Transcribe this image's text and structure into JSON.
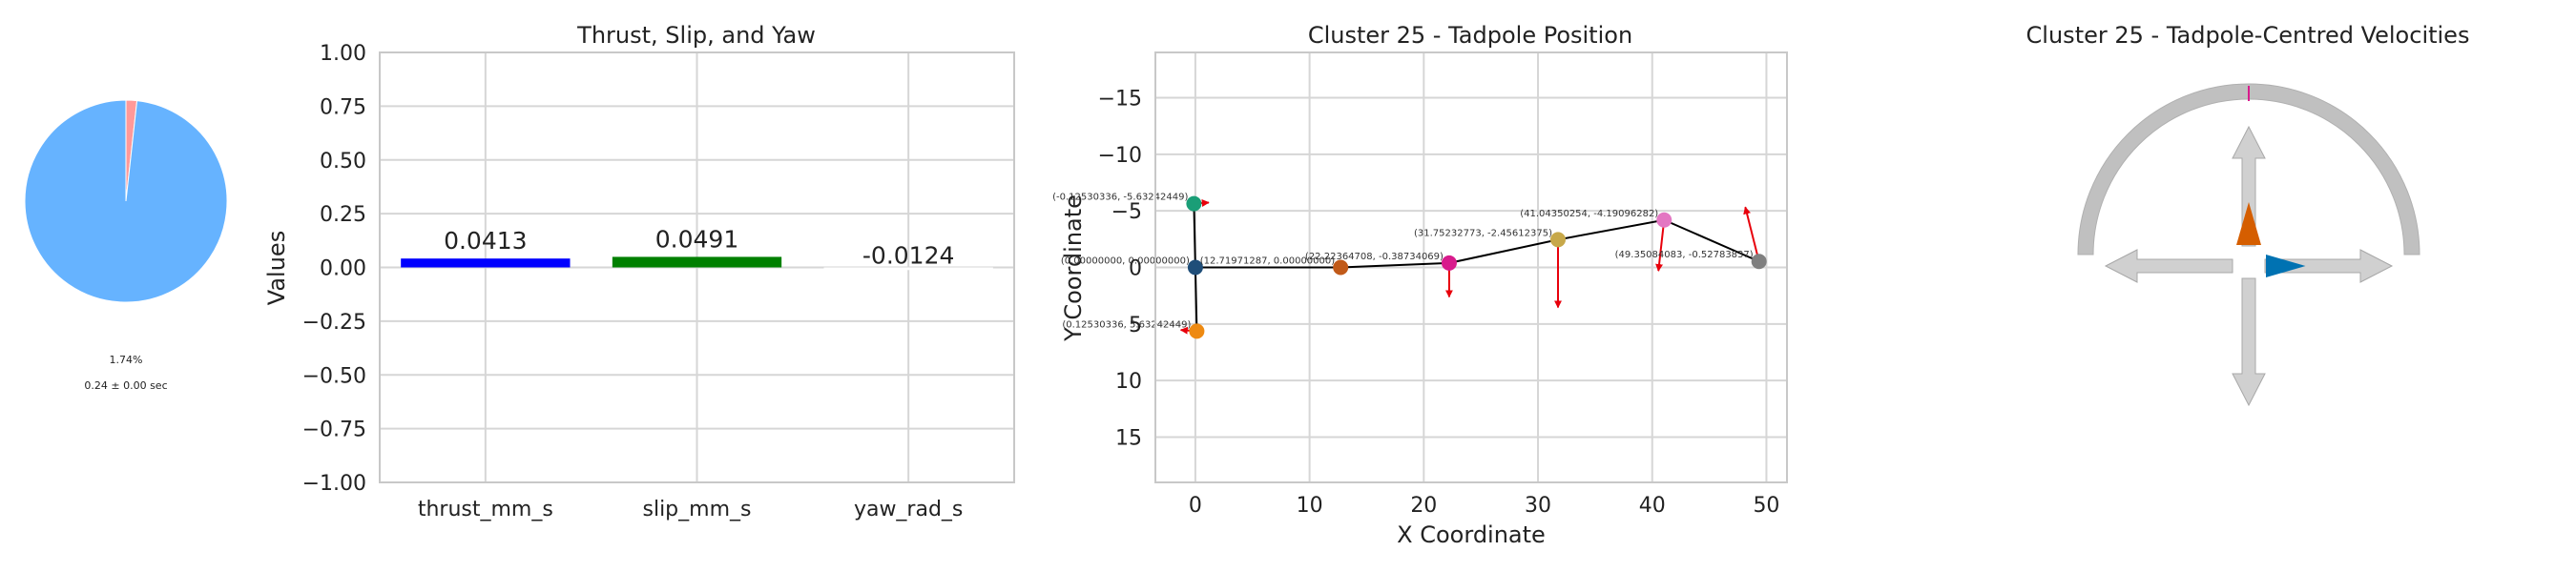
{
  "chart_data": [
    {
      "type": "pie",
      "slices": [
        {
          "value": 98.26,
          "color": "#66b3ff"
        },
        {
          "value": 1.74,
          "color": "#ff9999"
        }
      ],
      "percent_label": "1.74%",
      "duration_label": "0.24 ± 0.00 sec"
    },
    {
      "type": "bar",
      "title": "Thrust, Slip, and Yaw",
      "ylabel": "Values",
      "xlabel": "",
      "ylim": [
        -1.0,
        1.0
      ],
      "yticks": [
        -1.0,
        -0.75,
        -0.5,
        -0.25,
        0.0,
        0.25,
        0.5,
        0.75,
        1.0
      ],
      "ytick_labels": [
        "−1.00",
        "−0.75",
        "−0.50",
        "−0.25",
        "0.00",
        "0.25",
        "0.50",
        "0.75",
        "1.00"
      ],
      "categories": [
        "thrust_mm_s",
        "slip_mm_s",
        "yaw_rad_s"
      ],
      "values": [
        0.0413,
        0.0491,
        -0.0124
      ],
      "value_labels": [
        "0.0413",
        "0.0491",
        "-0.0124"
      ],
      "colors": [
        "#0000ff",
        "#008000",
        "#ffffff"
      ]
    },
    {
      "type": "scatter",
      "title": "Cluster 25 - Tadpole Position",
      "xlabel": "X Coordinate",
      "ylabel": "Y Coordinate",
      "xlim": [
        -3.5,
        51.8
      ],
      "ylim": [
        19,
        -19
      ],
      "xticks": [
        0,
        10,
        20,
        30,
        40,
        50
      ],
      "xtick_labels": [
        "0",
        "10",
        "20",
        "30",
        "40",
        "50"
      ],
      "yticks": [
        -15,
        -10,
        -5,
        0,
        5,
        10,
        15
      ],
      "ytick_labels": [
        "−15",
        "−10",
        "−5",
        "0",
        "5",
        "10",
        "15"
      ],
      "path_color": "#000000",
      "arrow_color": "#e8000b",
      "points": [
        {
          "x": -0.12530336,
          "y": -5.63242449,
          "label": "(-0.12530336, -5.63242449)",
          "color": "#1a9e77",
          "arrow": [
            1.3,
            -0.1
          ]
        },
        {
          "x": 0.0,
          "y": 0.0,
          "label": "(0.00000000, 0.00000000)",
          "color": "#1f4e79",
          "arrow": null
        },
        {
          "x": 0.12530336,
          "y": 5.63242449,
          "label": "(0.12530336, 5.63242449)",
          "color": "#ee8a12",
          "arrow": [
            -1.4,
            -0.1
          ]
        },
        {
          "x": 12.71971287,
          "y": 0.0,
          "label": "(12.71971287, 0.00000000)",
          "color": "#c15a19",
          "arrow": null
        },
        {
          "x": 22.22364708,
          "y": -0.38734069,
          "label": "(22.22364708, -0.38734069)",
          "color": "#d81b8c",
          "arrow": [
            0.0,
            3.0
          ]
        },
        {
          "x": 31.75232773,
          "y": -2.45612375,
          "label": "(31.75232773, -2.45612375)",
          "color": "#c7a84a",
          "arrow": [
            0.0,
            6.0
          ]
        },
        {
          "x": 41.04350254,
          "y": -4.19096282,
          "label": "(41.04350254, -4.19096282)",
          "color": "#e377c2",
          "arrow": [
            -0.5,
            4.5
          ]
        },
        {
          "x": 49.35084083,
          "y": -0.52783837,
          "label": "(49.35084083, -0.52783837)",
          "color": "#7f7f7f",
          "arrow": [
            -1.2,
            -4.8
          ]
        }
      ]
    },
    {
      "type": "other",
      "title": "Cluster 25 - Tadpole-Centred Velocities",
      "thrust_mm_s": 0.0413,
      "slip_mm_s": 0.0491,
      "yaw_rad_s": -0.0124,
      "thrust_color": "#d55e00",
      "slip_color": "#0072b2",
      "yaw_marker_color": "#d81b8c",
      "guide_color": "#c0c0c0"
    }
  ]
}
